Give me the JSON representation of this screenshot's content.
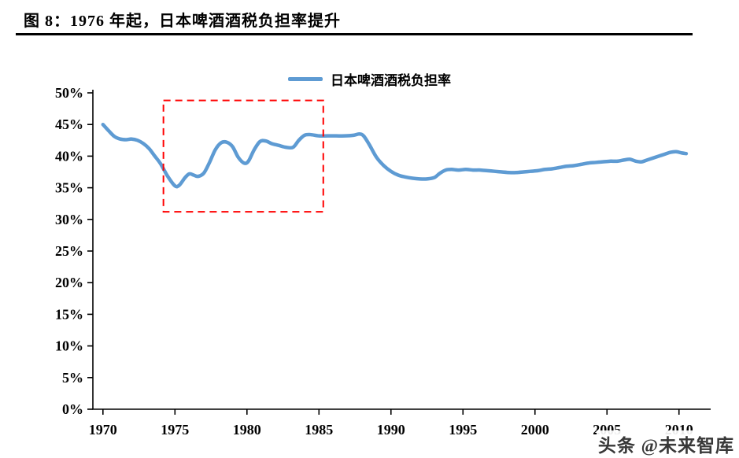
{
  "figure": {
    "title": "图 8：1976 年起，日本啤酒酒税负担率提升",
    "watermark": "头条 @未来智库"
  },
  "chart_data": {
    "type": "line",
    "title": "",
    "xlabel": "",
    "ylabel": "",
    "legend": [
      "日本啤酒酒税负担率"
    ],
    "legend_position": "top-center",
    "grid": false,
    "line_color": "#5E9BD3",
    "axis_color": "#000000",
    "ylim": [
      0,
      50
    ],
    "y_tick_step": 5,
    "y_tick_labels": [
      "0%",
      "5%",
      "10%",
      "15%",
      "20%",
      "25%",
      "30%",
      "35%",
      "40%",
      "45%",
      "50%"
    ],
    "xlim": [
      1969.3,
      2012.2
    ],
    "x_ticks": [
      1970,
      1975,
      1980,
      1985,
      1990,
      1995,
      2000,
      2005,
      2010
    ],
    "x_tick_labels": [
      "1970",
      "1975",
      "1980",
      "1985",
      "1990",
      "1995",
      "2000",
      "2005",
      "2010"
    ],
    "annotation_box": {
      "type": "dashed-rect",
      "color": "#FF0000",
      "x1": 1974.2,
      "x2": 1985.3,
      "y1": 31.2,
      "y2": 48.8,
      "meaning": "highlights 1976 onward tax-burden increase period"
    },
    "series": [
      {
        "name": "日本啤酒酒税负担率",
        "unit": "%",
        "points": [
          [
            1970.0,
            45.0
          ],
          [
            1970.4,
            44.0
          ],
          [
            1970.8,
            43.1
          ],
          [
            1971.2,
            42.7
          ],
          [
            1971.6,
            42.6
          ],
          [
            1972.0,
            42.7
          ],
          [
            1972.4,
            42.5
          ],
          [
            1972.8,
            42.0
          ],
          [
            1973.2,
            41.2
          ],
          [
            1973.6,
            40.0
          ],
          [
            1974.0,
            38.8
          ],
          [
            1974.5,
            36.8
          ],
          [
            1975.0,
            35.3
          ],
          [
            1975.3,
            35.4
          ],
          [
            1975.7,
            36.6
          ],
          [
            1976.0,
            37.2
          ],
          [
            1976.3,
            37.0
          ],
          [
            1976.6,
            36.8
          ],
          [
            1977.0,
            37.3
          ],
          [
            1977.4,
            39.0
          ],
          [
            1977.8,
            41.0
          ],
          [
            1978.2,
            42.1
          ],
          [
            1978.6,
            42.2
          ],
          [
            1979.0,
            41.5
          ],
          [
            1979.4,
            39.8
          ],
          [
            1979.8,
            38.9
          ],
          [
            1980.1,
            39.2
          ],
          [
            1980.5,
            41.0
          ],
          [
            1980.9,
            42.3
          ],
          [
            1981.3,
            42.4
          ],
          [
            1981.7,
            42.0
          ],
          [
            1982.2,
            41.7
          ],
          [
            1982.7,
            41.4
          ],
          [
            1983.2,
            41.4
          ],
          [
            1983.6,
            42.5
          ],
          [
            1984.0,
            43.3
          ],
          [
            1984.4,
            43.4
          ],
          [
            1985.0,
            43.2
          ],
          [
            1985.6,
            43.2
          ],
          [
            1986.2,
            43.2
          ],
          [
            1986.8,
            43.2
          ],
          [
            1987.4,
            43.3
          ],
          [
            1987.8,
            43.5
          ],
          [
            1988.1,
            43.2
          ],
          [
            1988.5,
            41.8
          ],
          [
            1989.0,
            39.8
          ],
          [
            1989.5,
            38.5
          ],
          [
            1990.0,
            37.6
          ],
          [
            1990.5,
            37.0
          ],
          [
            1991.0,
            36.7
          ],
          [
            1991.5,
            36.5
          ],
          [
            1992.0,
            36.4
          ],
          [
            1992.5,
            36.4
          ],
          [
            1993.0,
            36.6
          ],
          [
            1993.4,
            37.3
          ],
          [
            1993.8,
            37.8
          ],
          [
            1994.2,
            37.9
          ],
          [
            1994.7,
            37.8
          ],
          [
            1995.2,
            37.9
          ],
          [
            1995.7,
            37.8
          ],
          [
            1996.2,
            37.8
          ],
          [
            1996.7,
            37.7
          ],
          [
            1997.2,
            37.6
          ],
          [
            1997.7,
            37.5
          ],
          [
            1998.2,
            37.4
          ],
          [
            1998.7,
            37.4
          ],
          [
            1999.2,
            37.5
          ],
          [
            1999.7,
            37.6
          ],
          [
            2000.2,
            37.7
          ],
          [
            2000.7,
            37.9
          ],
          [
            2001.2,
            38.0
          ],
          [
            2001.7,
            38.2
          ],
          [
            2002.2,
            38.4
          ],
          [
            2002.7,
            38.5
          ],
          [
            2003.2,
            38.7
          ],
          [
            2003.7,
            38.9
          ],
          [
            2004.2,
            39.0
          ],
          [
            2004.7,
            39.1
          ],
          [
            2005.2,
            39.2
          ],
          [
            2005.7,
            39.2
          ],
          [
            2006.2,
            39.4
          ],
          [
            2006.6,
            39.5
          ],
          [
            2007.0,
            39.2
          ],
          [
            2007.4,
            39.1
          ],
          [
            2007.8,
            39.4
          ],
          [
            2008.2,
            39.7
          ],
          [
            2008.6,
            40.0
          ],
          [
            2009.0,
            40.3
          ],
          [
            2009.4,
            40.6
          ],
          [
            2009.8,
            40.7
          ],
          [
            2010.2,
            40.5
          ],
          [
            2010.5,
            40.4
          ]
        ]
      }
    ]
  }
}
